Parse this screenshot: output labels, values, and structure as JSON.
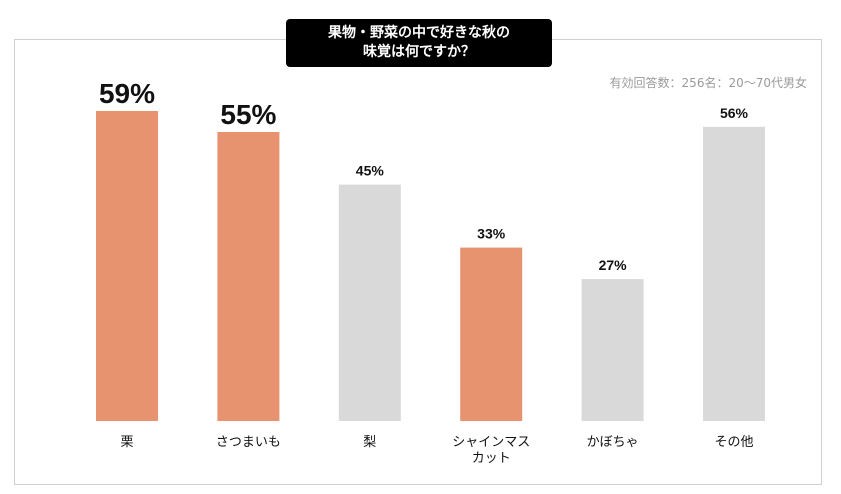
{
  "title": {
    "line1": "果物・野菜の中で好きな秋の",
    "line2": "味覚は何ですか？"
  },
  "note": "有効回答数：256名：20〜70代男女",
  "colors": {
    "highlight": "#e8936f",
    "normal": "#d9d9d9",
    "text": "#111111"
  },
  "chart_data": {
    "type": "bar",
    "categories": [
      "栗",
      "さつまいも",
      "梨",
      "シャインマスカット",
      "かぼちゃ",
      "その他"
    ],
    "category_lines": [
      [
        "栗"
      ],
      [
        "さつまいも"
      ],
      [
        "梨"
      ],
      [
        "シャインマス",
        "カット"
      ],
      [
        "かぼちゃ"
      ],
      [
        "その他"
      ]
    ],
    "values": [
      59,
      55,
      45,
      33,
      27,
      56
    ],
    "value_labels": [
      "59%",
      "55%",
      "45%",
      "33%",
      "27%",
      "56%"
    ],
    "highlighted": [
      true,
      true,
      false,
      true,
      false,
      false
    ],
    "large_label": [
      true,
      true,
      false,
      false,
      false,
      false
    ],
    "ylim": [
      0,
      59
    ],
    "unit": "%",
    "grid": false,
    "legend": "none"
  }
}
